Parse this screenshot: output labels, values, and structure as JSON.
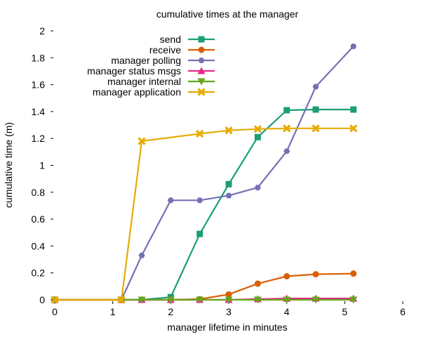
{
  "chart_data": {
    "type": "line",
    "title": "cumulative times at the manager",
    "xlabel": "manager lifetime in minutes",
    "ylabel": "cumulative time (m)",
    "xlim": [
      0,
      6
    ],
    "ylim": [
      0,
      2
    ],
    "xticks": [
      0,
      1,
      2,
      3,
      4,
      5,
      6
    ],
    "yticks": [
      0,
      0.2,
      0.4,
      0.6,
      0.8,
      1,
      1.2,
      1.4,
      1.6,
      1.8,
      2
    ],
    "xtick_labels": [
      "0",
      "1",
      "2",
      "3",
      "4",
      "5",
      "6"
    ],
    "ytick_labels": [
      "0",
      "0.2",
      "0.4",
      "0.6",
      "0.8",
      "1",
      "1.2",
      "1.4",
      "1.6",
      "1.8",
      "2"
    ],
    "grid": false,
    "legend_position": "top-left",
    "series": [
      {
        "name": "send",
        "color": "#1b9e77",
        "marker": "square",
        "points": [
          [
            0,
            0
          ],
          [
            1.15,
            0
          ],
          [
            1.5,
            0
          ],
          [
            2,
            0.02
          ],
          [
            2.5,
            0.49
          ],
          [
            3,
            0.86
          ],
          [
            3.5,
            1.21
          ],
          [
            4,
            1.41
          ],
          [
            4.5,
            1.415
          ],
          [
            5.15,
            1.415
          ]
        ]
      },
      {
        "name": "receive",
        "color": "#d95f02",
        "marker": "circle",
        "points": [
          [
            0,
            0
          ],
          [
            1.15,
            0
          ],
          [
            1.5,
            0
          ],
          [
            2,
            0
          ],
          [
            2.5,
            0.005
          ],
          [
            3,
            0.04
          ],
          [
            3.5,
            0.12
          ],
          [
            4,
            0.175
          ],
          [
            4.5,
            0.19
          ],
          [
            5.15,
            0.195
          ]
        ]
      },
      {
        "name": "manager polling",
        "color": "#7570b3",
        "marker": "hexagon",
        "points": [
          [
            0,
            0
          ],
          [
            1.15,
            0
          ],
          [
            1.5,
            0.33
          ],
          [
            2,
            0.74
          ],
          [
            2.5,
            0.74
          ],
          [
            3,
            0.775
          ],
          [
            3.5,
            0.835
          ],
          [
            4,
            1.105
          ],
          [
            4.5,
            1.585
          ],
          [
            5.15,
            1.885
          ]
        ]
      },
      {
        "name": "manager status msgs",
        "color": "#e7298a",
        "marker": "triangle-up",
        "points": [
          [
            0,
            0
          ],
          [
            1.15,
            0
          ],
          [
            1.5,
            0
          ],
          [
            2,
            0
          ],
          [
            2.5,
            0
          ],
          [
            3,
            0
          ],
          [
            3.5,
            0.005
          ],
          [
            4,
            0.01
          ],
          [
            4.5,
            0.01
          ],
          [
            5.15,
            0.01
          ]
        ]
      },
      {
        "name": "manager internal",
        "color": "#66a61e",
        "marker": "triangle-down",
        "points": [
          [
            0,
            0
          ],
          [
            1.15,
            0
          ],
          [
            1.5,
            0
          ],
          [
            2,
            0
          ],
          [
            2.5,
            0
          ],
          [
            3,
            0
          ],
          [
            3.5,
            0
          ],
          [
            4,
            0
          ],
          [
            4.5,
            0
          ],
          [
            5.15,
            0
          ]
        ]
      },
      {
        "name": "manager application",
        "color": "#e6ab02",
        "marker": "cross",
        "points": [
          [
            0,
            0
          ],
          [
            1.15,
            0
          ],
          [
            1.5,
            1.18
          ],
          [
            2.5,
            1.235
          ],
          [
            3,
            1.26
          ],
          [
            3.5,
            1.27
          ],
          [
            4,
            1.275
          ],
          [
            4.5,
            1.275
          ],
          [
            5.15,
            1.275
          ]
        ]
      }
    ]
  }
}
